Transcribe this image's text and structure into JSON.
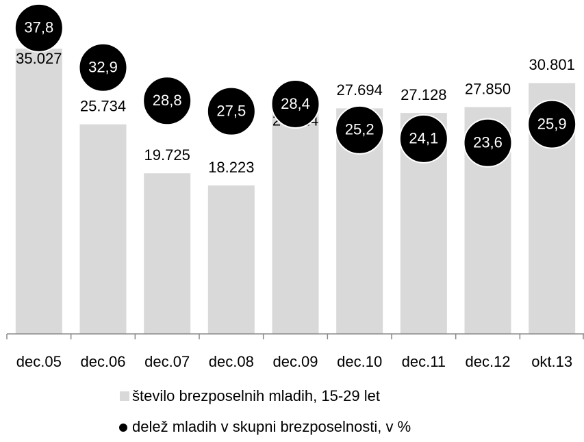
{
  "chart_data": {
    "type": "bar",
    "categories": [
      "dec.05",
      "dec.06",
      "dec.07",
      "dec.08",
      "dec.09",
      "dec.10",
      "dec.11",
      "dec.12",
      "okt.13"
    ],
    "series": [
      {
        "name": "število brezposelnih mladih, 15-29 let",
        "color": "#d9d9d9",
        "type": "bar",
        "values": [
          35027,
          25734,
          19725,
          18223,
          27424,
          27694,
          27128,
          27850,
          30801
        ],
        "value_labels": [
          "35.027",
          "25.734",
          "19.725",
          "18.223",
          "27.424",
          "27.694",
          "27.128",
          "27.850",
          "30.801"
        ]
      },
      {
        "name": "delež mladih v skupni brezposelnosti, v %",
        "color": "#000000",
        "type": "scatter",
        "axis": "y2",
        "values": [
          37.8,
          32.9,
          28.8,
          27.5,
          28.4,
          25.2,
          24.1,
          23.6,
          25.9
        ],
        "value_labels": [
          "37,8",
          "32,9",
          "28,8",
          "27,5",
          "28,4",
          "25,2",
          "24,1",
          "23,6",
          "25,9"
        ]
      }
    ],
    "ylim": [
      0,
      41000
    ],
    "y2lim": [
      0,
      41.25
    ]
  }
}
